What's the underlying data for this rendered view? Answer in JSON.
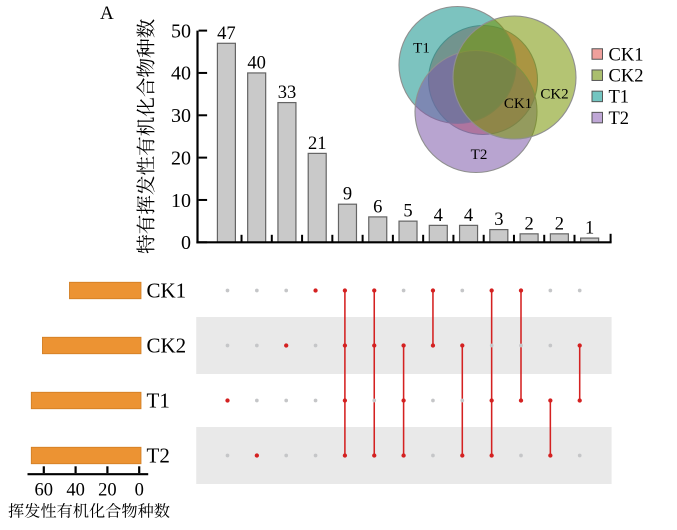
{
  "figure": {
    "panel_label": "A"
  },
  "colors": {
    "text": "#000000",
    "axis": "#000000",
    "bar_fill": "#c9c9c9",
    "bar_edge": "#646464",
    "red": "#d42121",
    "dot_gray": "#c5c6c8",
    "band_gray": "#e9e9e9",
    "orange_fill": "#ec9333",
    "orange_edge": "#d07d24",
    "venn_stroke": "#8f8f8f",
    "set_base_colors": {
      "CK1": "#d74439",
      "CK2": "#779300",
      "T1": "#11928b",
      "T2": "#7e5aaa"
    }
  },
  "legend": {
    "entries": [
      {
        "label": "CK1",
        "color": "#efa09c"
      },
      {
        "label": "CK2",
        "color": "#aabe6e"
      },
      {
        "label": "T1",
        "color": "#73c5c1"
      },
      {
        "label": "T2",
        "color": "#bfa7d6"
      }
    ]
  },
  "chart_data": [
    {
      "id": "intersection-size-bars",
      "type": "bar",
      "title": "",
      "ylabel": "特有挥发性有机化合物种数",
      "yticks": [
        0,
        10,
        20,
        30,
        40,
        50
      ],
      "ylim": [
        0,
        50
      ],
      "grid": false,
      "categories": [
        "T1",
        "T2",
        "CK2",
        "CK1",
        "CK1∩CK2∩T1∩T2",
        "CK1∩CK2∩T2",
        "CK2∩T1∩T2",
        "CK1∩CK2",
        "CK2∩T2",
        "CK1∩T1∩T2",
        "CK1∩T1",
        "T1∩T2",
        "CK2∩T1"
      ],
      "values": [
        47,
        40,
        33,
        21,
        9,
        6,
        5,
        4,
        4,
        3,
        2,
        2,
        1
      ]
    },
    {
      "id": "venn-diagram",
      "type": "venn",
      "sets": [
        "T1",
        "CK2",
        "T2",
        "CK1"
      ],
      "circle_labels": [
        "T1",
        "CK2",
        "CK1",
        "T2"
      ]
    },
    {
      "id": "set-size-bars",
      "type": "bar",
      "orientation": "horizontal",
      "xlabel": "挥发性有机化合物种数",
      "xticks": [
        60,
        40,
        20,
        0
      ],
      "xlim": [
        70,
        0
      ],
      "categories": [
        "CK1",
        "CK2",
        "T1",
        "T2"
      ],
      "values": [
        45,
        62,
        69,
        69
      ]
    },
    {
      "id": "membership-matrix",
      "type": "upset-matrix",
      "rows": [
        "CK1",
        "CK2",
        "T1",
        "T2"
      ],
      "columns": [
        {
          "size": 47,
          "members": [
            "T1"
          ]
        },
        {
          "size": 40,
          "members": [
            "T2"
          ]
        },
        {
          "size": 33,
          "members": [
            "CK2"
          ]
        },
        {
          "size": 21,
          "members": [
            "CK1"
          ]
        },
        {
          "size": 9,
          "members": [
            "CK1",
            "CK2",
            "T1",
            "T2"
          ]
        },
        {
          "size": 6,
          "members": [
            "CK1",
            "CK2",
            "T2"
          ]
        },
        {
          "size": 5,
          "members": [
            "CK2",
            "T1",
            "T2"
          ]
        },
        {
          "size": 4,
          "members": [
            "CK1",
            "CK2"
          ]
        },
        {
          "size": 4,
          "members": [
            "CK2",
            "T2"
          ]
        },
        {
          "size": 3,
          "members": [
            "CK1",
            "T1",
            "T2"
          ]
        },
        {
          "size": 2,
          "members": [
            "CK1",
            "T1"
          ]
        },
        {
          "size": 2,
          "members": [
            "T1",
            "T2"
          ]
        },
        {
          "size": 1,
          "members": [
            "CK2",
            "T1"
          ]
        }
      ]
    }
  ]
}
